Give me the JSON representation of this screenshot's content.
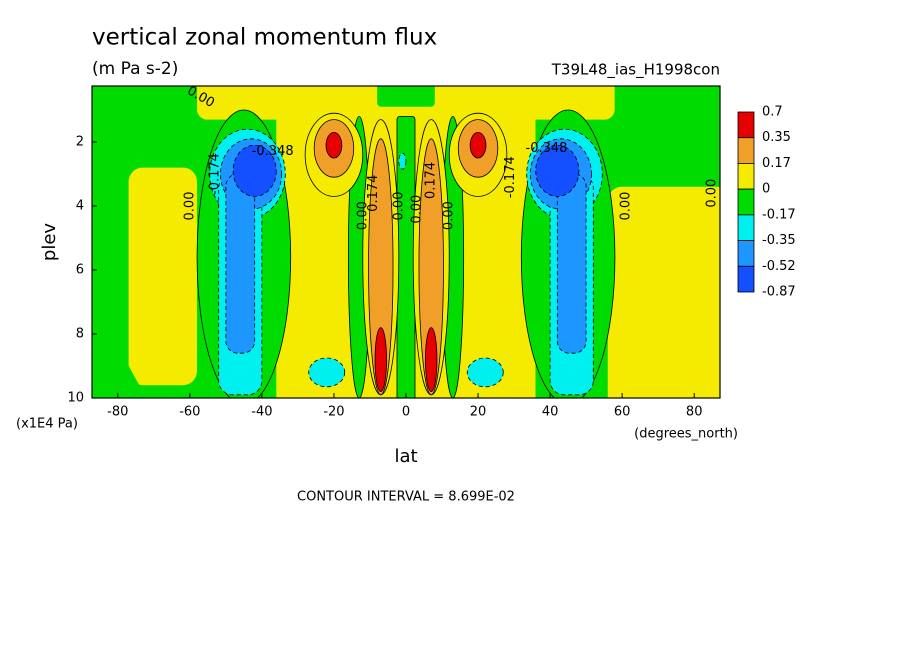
{
  "chart_data": {
    "type": "contour",
    "title": "vertical zonal momentum flux",
    "subtitle": "(m Pa s-2)",
    "run_label": "T39L48_ias_H1998con",
    "x_label": "lat",
    "y_label": "plev",
    "x_unit": "(degrees_north)",
    "y_unit": "(x1E4 Pa)",
    "footer": "CONTOUR INTERVAL = 8.699E-02",
    "xlim": [
      -87.16,
      87.16
    ],
    "ylim": [
      10,
      0.25
    ],
    "xticks": [
      -80,
      -60,
      -40,
      -20,
      0,
      20,
      40,
      60,
      80
    ],
    "yticks": [
      2,
      4,
      6,
      8,
      10
    ],
    "colorbar": {
      "levels": [
        0.7,
        0.35,
        0.17,
        0,
        -0.17,
        -0.35,
        -0.52,
        -0.87
      ],
      "colors": [
        "#e60000",
        "#f0a028",
        "#f5eb00",
        "#00dc00",
        "#00f0f0",
        "#1e96ff",
        "#1450ff"
      ]
    },
    "contour_labels": [
      {
        "text": "0.00",
        "x": -57,
        "y": 0.6
      },
      {
        "text": "-0.348",
        "x": -37,
        "y": 2.3
      },
      {
        "text": "-0.174",
        "x": -53,
        "y": 3.0
      },
      {
        "text": "0.00",
        "x": -60,
        "y": 4.0
      },
      {
        "text": "0.00",
        "x": -12,
        "y": 4.3
      },
      {
        "text": "0.174",
        "x": -9,
        "y": 3.6
      },
      {
        "text": "0.00",
        "x": -2,
        "y": 4.0
      },
      {
        "text": "0.00",
        "x": 3,
        "y": 4.1
      },
      {
        "text": "0.174",
        "x": 7,
        "y": 3.2
      },
      {
        "text": "0.00",
        "x": 12,
        "y": 4.3
      },
      {
        "text": "-0.174",
        "x": 29,
        "y": 3.1
      },
      {
        "text": "-0.348",
        "x": 39,
        "y": 2.2
      },
      {
        "text": "0.00",
        "x": 61,
        "y": 4.0
      },
      {
        "text": "0.00",
        "x": 85,
        "y": 3.6
      }
    ]
  }
}
